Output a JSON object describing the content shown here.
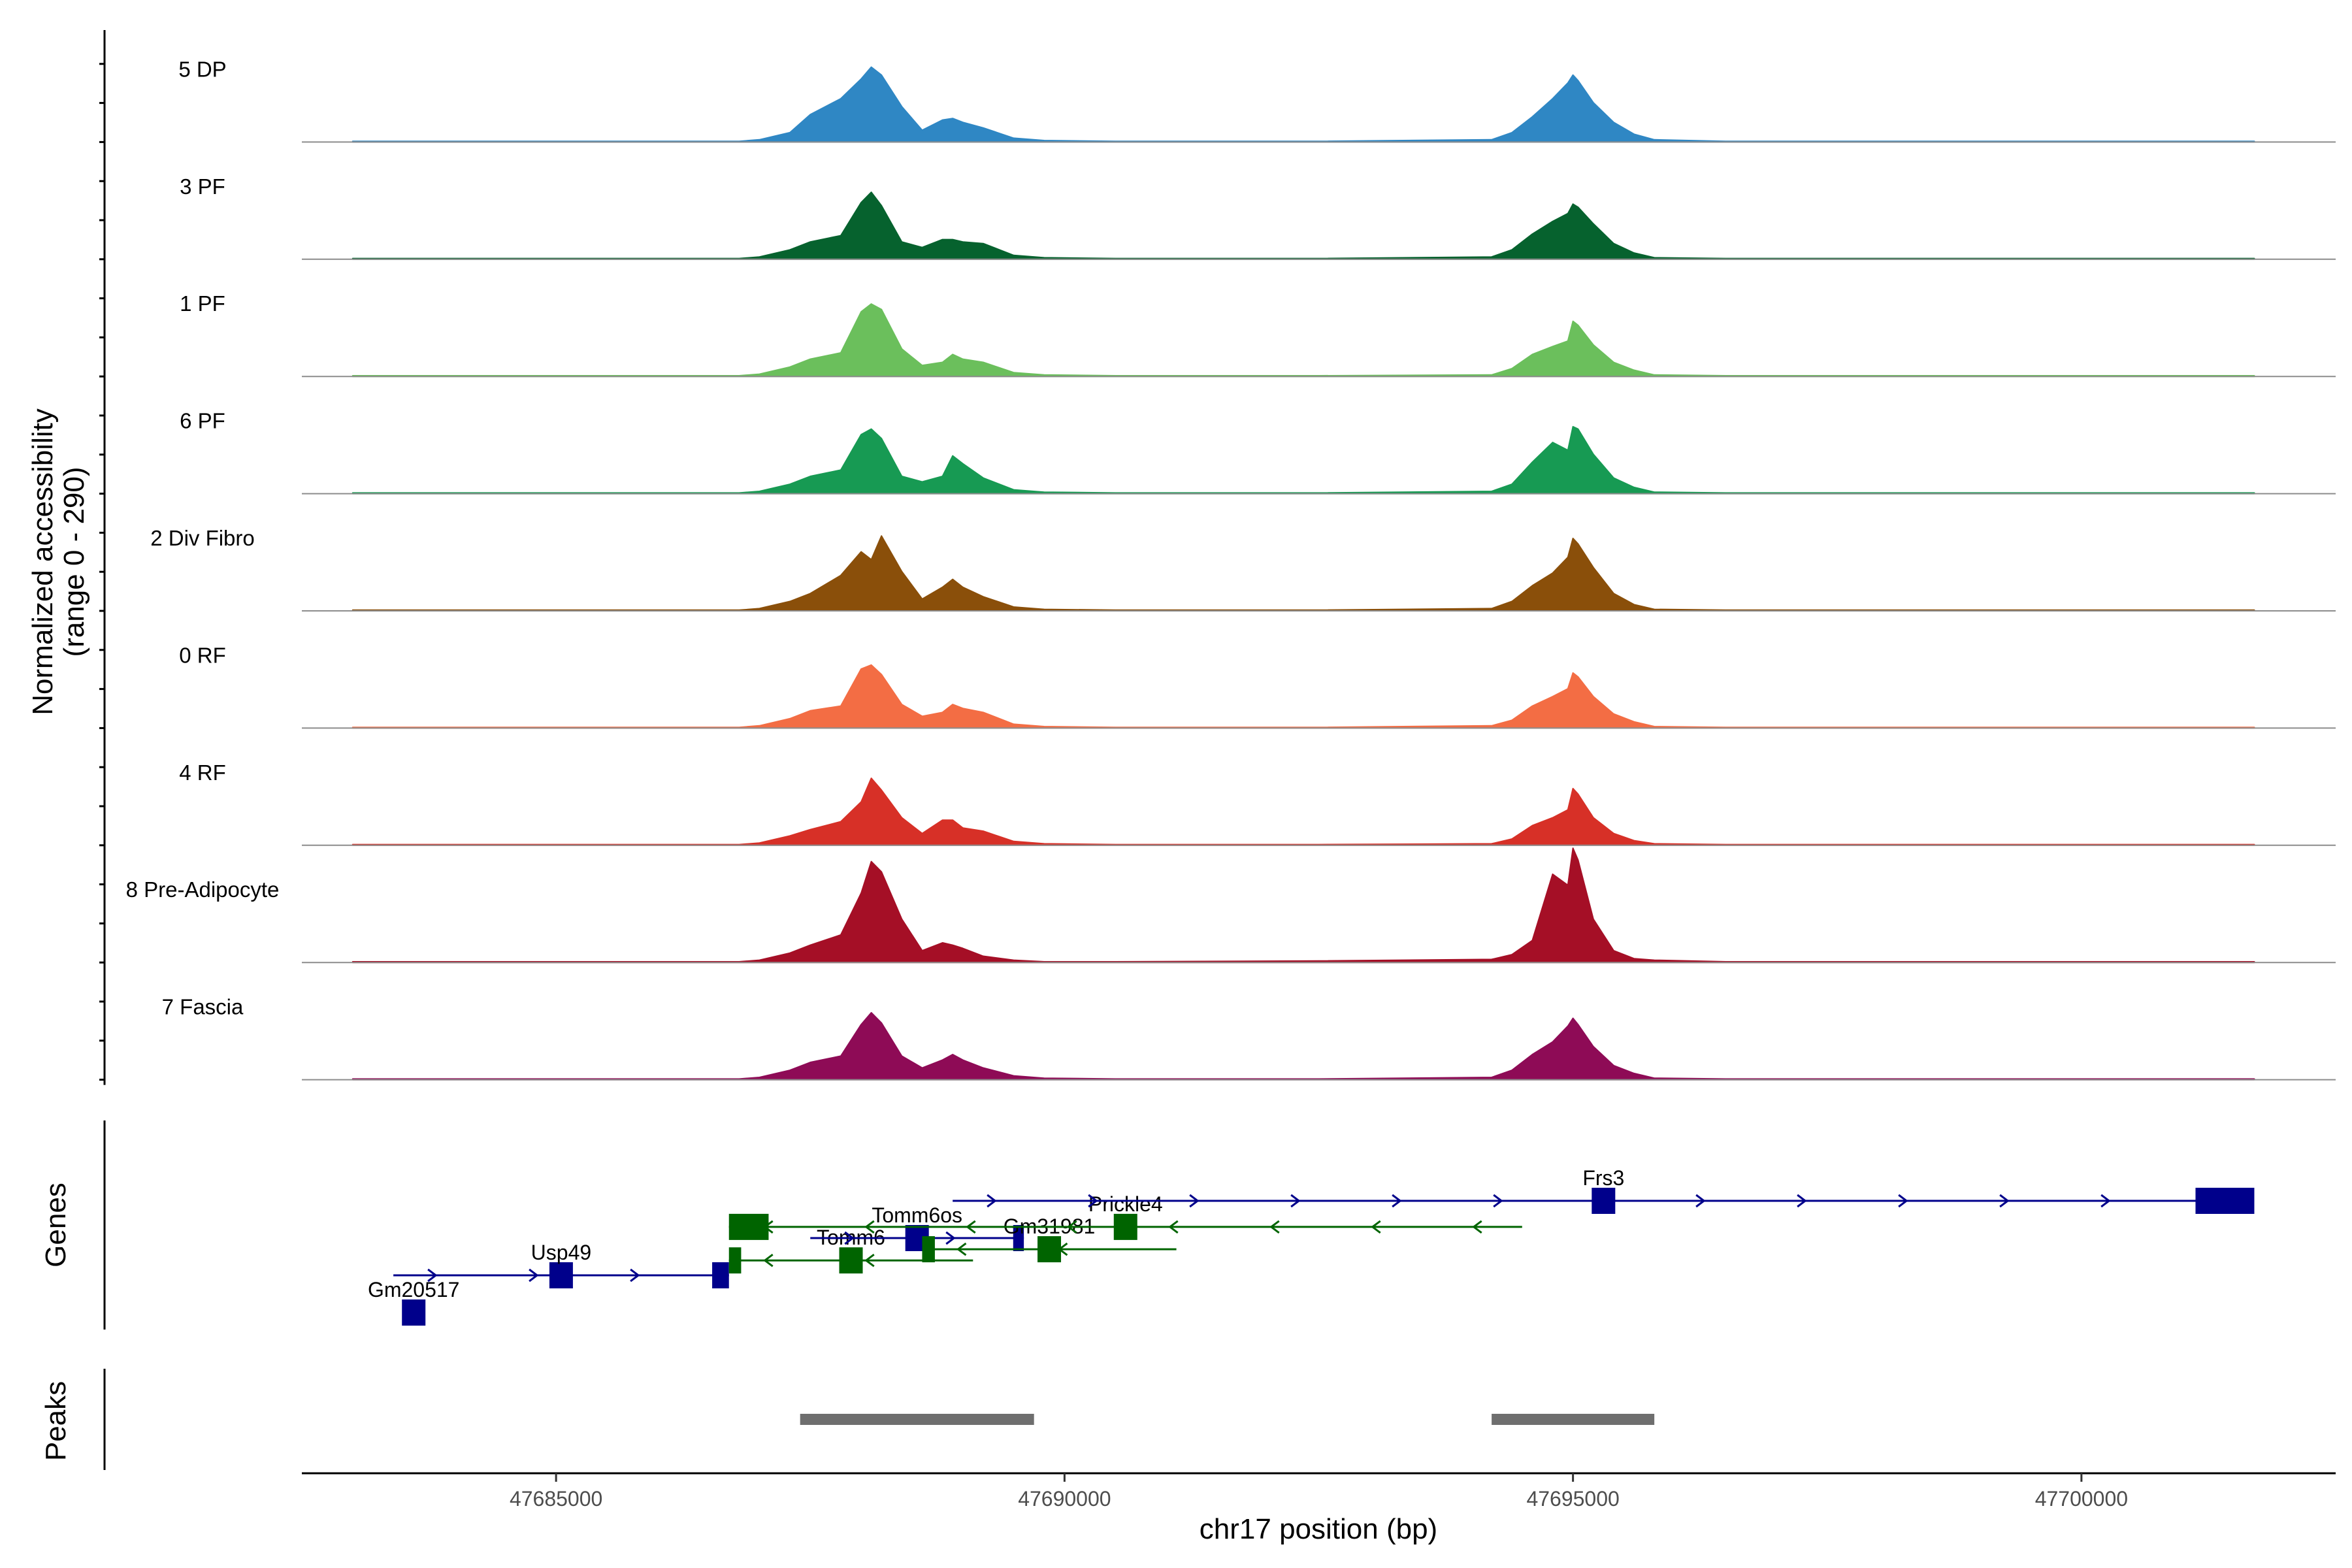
{
  "chart_data": {
    "type": "area",
    "title": "",
    "chromosome": "chr17",
    "xlabel": "chr17 position (bp)",
    "ylabel_line1": "Normalized accessibility",
    "ylabel_line2": "(range 0 - 290)",
    "y_range": [
      0,
      290
    ],
    "xlim": [
      47682500,
      47702500
    ],
    "x_ticks": [
      47685000,
      47690000,
      47695000,
      47700000
    ],
    "x_tick_labels": [
      "47685000",
      "47690000",
      "47695000",
      "47700000"
    ],
    "profile_x": [
      47683000,
      47686800,
      47687000,
      47687300,
      47687500,
      47687800,
      47688000,
      47688100,
      47688200,
      47688400,
      47688600,
      47688800,
      47688900,
      47689000,
      47689200,
      47689500,
      47689800,
      47690500,
      47692500,
      47694200,
      47694400,
      47694600,
      47694800,
      47694950,
      47695000,
      47695050,
      47695200,
      47695400,
      47695600,
      47695800,
      47696500,
      47701700
    ],
    "series": [
      {
        "name": "5 DP",
        "color": "#2f87c4",
        "values": [
          1,
          1,
          3,
          12,
          35,
          55,
          80,
          95,
          85,
          45,
          15,
          28,
          30,
          25,
          18,
          5,
          2,
          1,
          1,
          3,
          12,
          32,
          55,
          75,
          85,
          78,
          50,
          25,
          10,
          3,
          1,
          1
        ]
      },
      {
        "name": "3 PF",
        "color": "#06622e",
        "values": [
          1,
          1,
          3,
          12,
          22,
          30,
          72,
          85,
          68,
          22,
          15,
          25,
          25,
          22,
          20,
          5,
          2,
          1,
          1,
          3,
          12,
          32,
          48,
          58,
          70,
          66,
          45,
          20,
          8,
          2,
          1,
          1
        ]
      },
      {
        "name": "1 PF",
        "color": "#6bbf5c",
        "values": [
          1,
          1,
          3,
          12,
          22,
          30,
          82,
          92,
          85,
          35,
          14,
          18,
          28,
          22,
          18,
          5,
          2,
          1,
          1,
          2,
          10,
          28,
          38,
          45,
          70,
          65,
          40,
          18,
          8,
          2,
          1,
          1
        ]
      },
      {
        "name": "6 PF",
        "color": "#179a53",
        "values": [
          1,
          1,
          3,
          12,
          22,
          30,
          75,
          82,
          70,
          22,
          15,
          22,
          48,
          38,
          20,
          5,
          2,
          1,
          1,
          3,
          12,
          40,
          65,
          55,
          85,
          82,
          50,
          20,
          8,
          2,
          1,
          1
        ]
      },
      {
        "name": "2 Div Fibro",
        "color": "#8a4f0a",
        "values": [
          1,
          1,
          3,
          12,
          22,
          45,
          75,
          65,
          95,
          50,
          15,
          30,
          40,
          30,
          18,
          5,
          2,
          1,
          1,
          3,
          12,
          32,
          48,
          68,
          92,
          85,
          55,
          22,
          8,
          2,
          1,
          1
        ]
      },
      {
        "name": "0 RF",
        "color": "#f36d44",
        "values": [
          1,
          1,
          3,
          12,
          22,
          28,
          75,
          80,
          68,
          30,
          15,
          20,
          30,
          25,
          20,
          5,
          2,
          1,
          1,
          3,
          10,
          28,
          40,
          50,
          70,
          65,
          40,
          18,
          8,
          2,
          1,
          1
        ]
      },
      {
        "name": "4 RF",
        "color": "#d73027",
        "values": [
          1,
          1,
          3,
          12,
          20,
          30,
          55,
          85,
          70,
          35,
          15,
          32,
          32,
          22,
          18,
          5,
          2,
          1,
          1,
          2,
          8,
          25,
          35,
          45,
          72,
          65,
          35,
          15,
          6,
          2,
          1,
          1
        ]
      },
      {
        "name": "8 Pre-Adipocyte",
        "color": "#a50f26",
        "values": [
          1,
          1,
          3,
          12,
          22,
          35,
          88,
          128,
          115,
          55,
          15,
          25,
          22,
          18,
          8,
          3,
          1,
          1,
          2,
          4,
          10,
          28,
          112,
          98,
          145,
          130,
          55,
          15,
          5,
          3,
          1,
          1
        ]
      },
      {
        "name": "7 Fascia",
        "color": "#8e0b56",
        "values": [
          1,
          1,
          3,
          12,
          22,
          30,
          70,
          85,
          72,
          30,
          15,
          25,
          32,
          25,
          15,
          5,
          2,
          1,
          1,
          3,
          12,
          32,
          48,
          68,
          78,
          70,
          42,
          18,
          8,
          2,
          1,
          1
        ]
      }
    ],
    "genes_track": {
      "label": "Genes",
      "genes": [
        {
          "name": "Gm20517",
          "strand": "+",
          "start": 47683500,
          "end": 47683700,
          "row": 3,
          "color": "#00008b"
        },
        {
          "name": "Usp49",
          "strand": "+",
          "start": 47683400,
          "end": 47686700,
          "row": 2,
          "color": "#00008b"
        },
        {
          "name": "Tomm6",
          "strand": "-",
          "start": 47686700,
          "end": 47689100,
          "row": 1.6,
          "color": "#006400"
        },
        {
          "name": "Tomm6os",
          "strand": "+",
          "start": 47687500,
          "end": 47689600,
          "row": 1,
          "color": "#00008b"
        },
        {
          "name": "Gm31981",
          "strand": "-",
          "start": 47688600,
          "end": 47691100,
          "row": 1.3,
          "color": "#006400"
        },
        {
          "name": "Prickle4",
          "strand": "-",
          "start": 47686700,
          "end": 47694500,
          "row": 0.7,
          "color": "#006400"
        },
        {
          "name": "Frs3",
          "strand": "+",
          "start": 47688900,
          "end": 47701700,
          "row": 0,
          "color": "#00008b"
        }
      ]
    },
    "peaks_track": {
      "label": "Peaks",
      "color": "#6e6e6e",
      "peaks": [
        [
          47687400,
          47689700
        ],
        [
          47694200,
          47695800
        ]
      ]
    }
  }
}
